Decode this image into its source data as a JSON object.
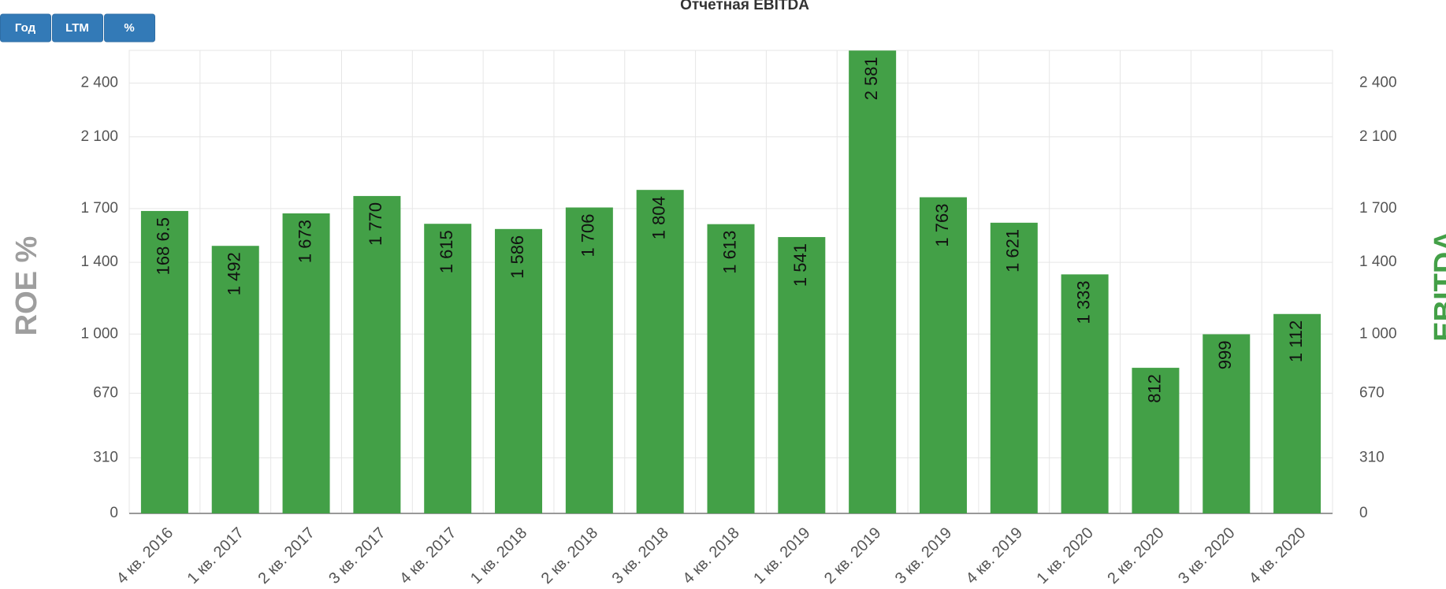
{
  "chart_data": {
    "type": "bar",
    "title": "Отчетная EBITDA",
    "buttons": [
      "Год",
      "LTM",
      "%"
    ],
    "y_label": "ROE %",
    "y2_label": "EBITDA",
    "categories": [
      "4 кв. 2016",
      "1 кв. 2017",
      "2 кв. 2017",
      "3 кв. 2017",
      "4 кв. 2017",
      "1 кв. 2018",
      "2 кв. 2018",
      "3 кв. 2018",
      "4 кв. 2018",
      "1 кв. 2019",
      "2 кв. 2019",
      "3 кв. 2019",
      "4 кв. 2019",
      "1 кв. 2020",
      "2 кв. 2020",
      "3 кв. 2020",
      "4 кв. 2020"
    ],
    "values": [
      1686.5,
      1492,
      1673,
      1770,
      1615,
      1586,
      1706,
      1804,
      1613,
      1541,
      2581,
      1763,
      1621,
      1333,
      812,
      999,
      1112
    ],
    "value_labels": [
      "168 6.5",
      "1 492",
      "1 673",
      "1 770",
      "1 615",
      "1 586",
      "1 706",
      "1 804",
      "1 613",
      "1 541",
      "2 581",
      "1 763",
      "1 621",
      "1 333",
      "812",
      "999",
      "1 112"
    ],
    "color": "#43a047",
    "ylim": [
      0,
      2582
    ],
    "yticks": [
      0,
      310,
      670,
      {
        "value": 1000,
        "label": "1 000"
      },
      {
        "value": 1400,
        "label": "1 400"
      },
      {
        "value": 1700,
        "label": "1 700"
      },
      {
        "value": 2100,
        "label": "2 100"
      },
      {
        "value": 2400,
        "label": "2 400"
      }
    ],
    "grid": true
  }
}
